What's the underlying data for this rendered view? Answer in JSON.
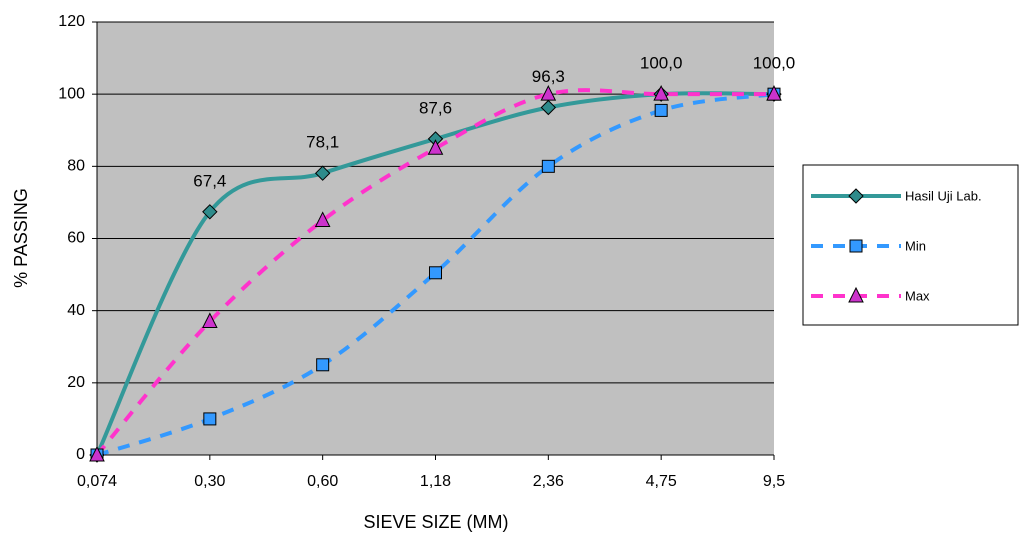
{
  "chart_data": {
    "type": "line",
    "x_label": "SIEVE SIZE (MM)",
    "y_label": "% PASSING",
    "categories": [
      "0,074",
      "0,30",
      "0,60",
      "1,18",
      "2,36",
      "4,75",
      "9,5"
    ],
    "series": [
      {
        "name": "Hasil Uji Lab.",
        "color": "#339999",
        "marker": "diamond",
        "dashed": false,
        "values": [
          0,
          67.4,
          78.1,
          87.6,
          96.3,
          100,
          100
        ],
        "value_labels": [
          null,
          "67,4",
          "78,1",
          "87,6",
          "96,3",
          "100,0",
          "100,0"
        ]
      },
      {
        "name": "Min",
        "color": "#3399ff",
        "marker": "square",
        "dashed": true,
        "values": [
          0,
          10,
          25,
          50.5,
          80,
          95.5,
          100
        ]
      },
      {
        "name": "Max",
        "color": "#ff33cc",
        "marker": "triangle",
        "dashed": true,
        "values": [
          0,
          37,
          65,
          85,
          100,
          100,
          100
        ]
      }
    ],
    "ylim": [
      0,
      120
    ],
    "yticks": [
      0,
      20,
      40,
      60,
      80,
      100,
      120
    ],
    "grid": true,
    "legend": "right",
    "plot_background": "#c0c0c0"
  }
}
